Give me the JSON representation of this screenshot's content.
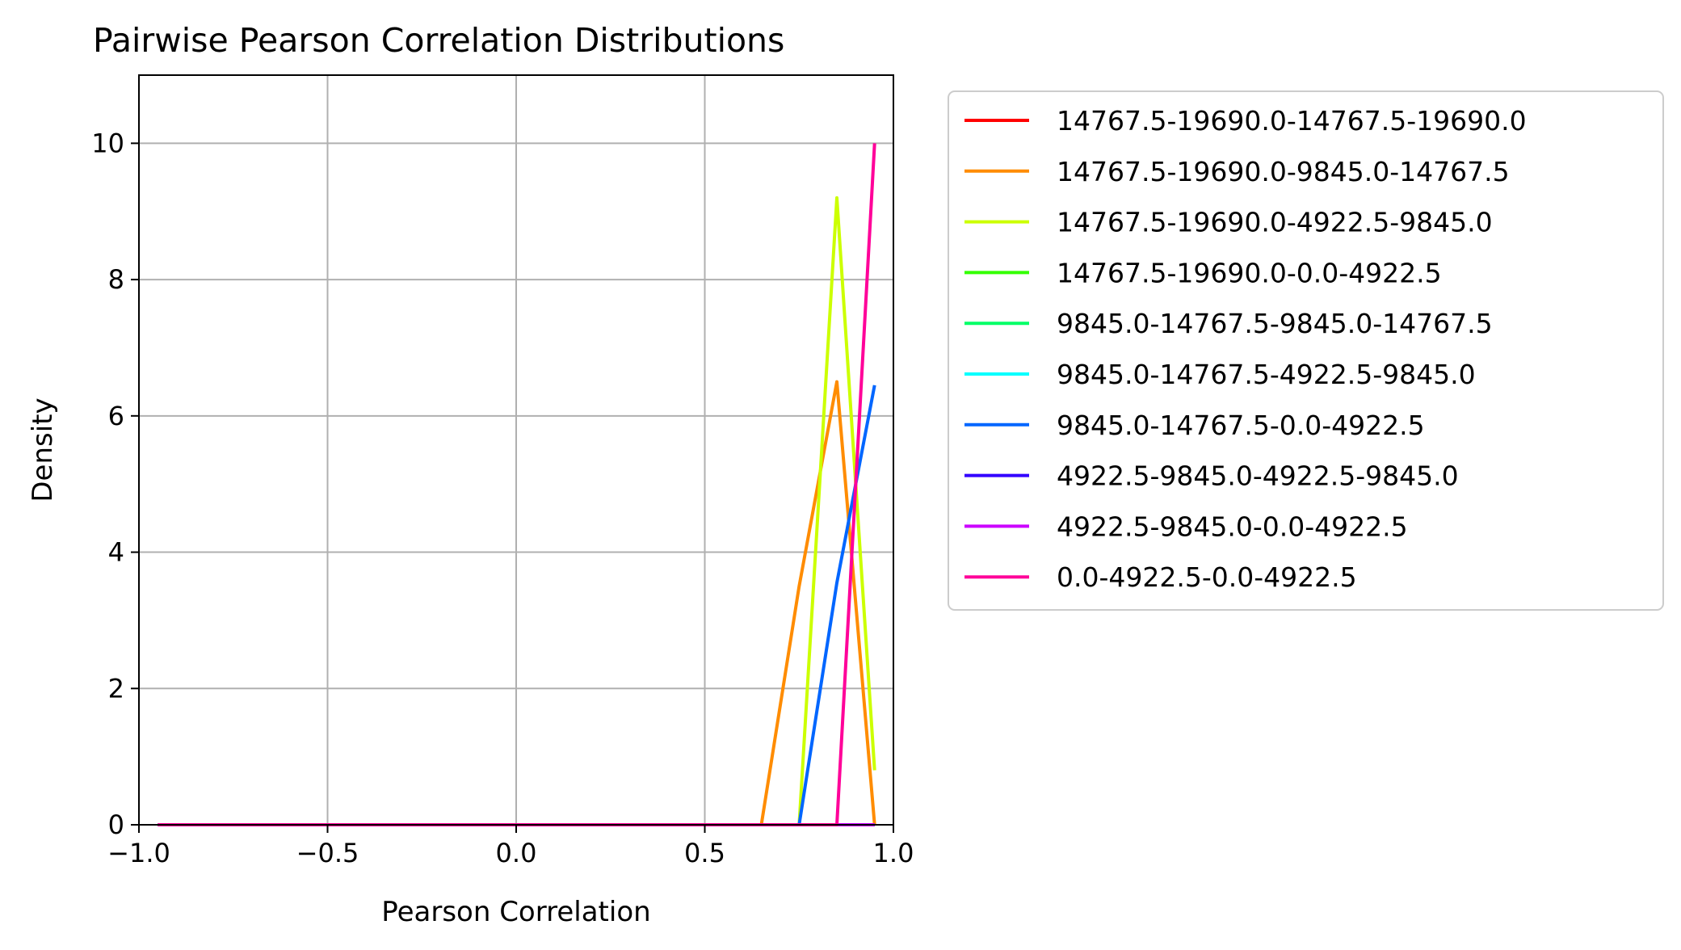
{
  "chart_data": {
    "type": "line",
    "title": "Pairwise Pearson Correlation Distributions",
    "xlabel": "Pearson Correlation",
    "ylabel": "Density",
    "xlim": [
      -1.0,
      1.0
    ],
    "ylim": [
      0,
      11
    ],
    "xticks": [
      -1.0,
      -0.5,
      0.0,
      0.5,
      1.0
    ],
    "xtick_labels": [
      "−1.0",
      "−0.5",
      "0.0",
      "0.5",
      "1.0"
    ],
    "yticks": [
      0,
      2,
      4,
      6,
      8,
      10
    ],
    "ytick_labels": [
      "0",
      "2",
      "4",
      "6",
      "8",
      "10"
    ],
    "grid": true,
    "legend_position": "outside-right",
    "x": [
      -0.95,
      -0.85,
      -0.75,
      -0.65,
      -0.55,
      -0.45,
      -0.35,
      -0.25,
      -0.15,
      -0.05,
      0.05,
      0.15,
      0.25,
      0.35,
      0.45,
      0.55,
      0.65,
      0.75,
      0.85,
      0.95
    ],
    "series": [
      {
        "name": "14767.5-19690.0-14767.5-19690.0",
        "color": "#ff0000",
        "values": [
          0,
          0,
          0,
          0,
          0,
          0,
          0,
          0,
          0,
          0,
          0,
          0,
          0,
          0,
          0,
          0,
          0,
          0,
          0,
          0
        ]
      },
      {
        "name": "14767.5-19690.0-9845.0-14767.5",
        "color": "#ff8c00",
        "values": [
          0,
          0,
          0,
          0,
          0,
          0,
          0,
          0,
          0,
          0,
          0,
          0,
          0,
          0,
          0,
          0,
          0,
          3.5,
          6.5,
          0
        ]
      },
      {
        "name": "14767.5-19690.0-4922.5-9845.0",
        "color": "#ccff00",
        "values": [
          0,
          0,
          0,
          0,
          0,
          0,
          0,
          0,
          0,
          0,
          0,
          0,
          0,
          0,
          0,
          0,
          0,
          0,
          9.2,
          0.8
        ]
      },
      {
        "name": "14767.5-19690.0-0.0-4922.5",
        "color": "#33ff00",
        "values": [
          0,
          0,
          0,
          0,
          0,
          0,
          0,
          0,
          0,
          0,
          0,
          0,
          0,
          0,
          0,
          0,
          0,
          0,
          0,
          0
        ]
      },
      {
        "name": "9845.0-14767.5-9845.0-14767.5",
        "color": "#00ff66",
        "values": [
          0,
          0,
          0,
          0,
          0,
          0,
          0,
          0,
          0,
          0,
          0,
          0,
          0,
          0,
          0,
          0,
          0,
          0,
          0,
          0
        ]
      },
      {
        "name": "9845.0-14767.5-4922.5-9845.0",
        "color": "#00ffff",
        "values": [
          0,
          0,
          0,
          0,
          0,
          0,
          0,
          0,
          0,
          0,
          0,
          0,
          0,
          0,
          0,
          0,
          0,
          0,
          0,
          0
        ]
      },
      {
        "name": "9845.0-14767.5-0.0-4922.5",
        "color": "#0066ff",
        "values": [
          0,
          0,
          0,
          0,
          0,
          0,
          0,
          0,
          0,
          0,
          0,
          0,
          0,
          0,
          0,
          0,
          0,
          0,
          3.55,
          6.45
        ]
      },
      {
        "name": "4922.5-9845.0-4922.5-9845.0",
        "color": "#3300ff",
        "values": [
          0,
          0,
          0,
          0,
          0,
          0,
          0,
          0,
          0,
          0,
          0,
          0,
          0,
          0,
          0,
          0,
          0,
          0,
          0,
          0
        ]
      },
      {
        "name": "4922.5-9845.0-0.0-4922.5",
        "color": "#cc00ff",
        "values": [
          0,
          0,
          0,
          0,
          0,
          0,
          0,
          0,
          0,
          0,
          0,
          0,
          0,
          0,
          0,
          0,
          0,
          0,
          0,
          0
        ]
      },
      {
        "name": "0.0-4922.5-0.0-4922.5",
        "color": "#ff0099",
        "values": [
          0,
          0,
          0,
          0,
          0,
          0,
          0,
          0,
          0,
          0,
          0,
          0,
          0,
          0,
          0,
          0,
          0,
          0,
          0,
          10.0
        ]
      }
    ]
  }
}
